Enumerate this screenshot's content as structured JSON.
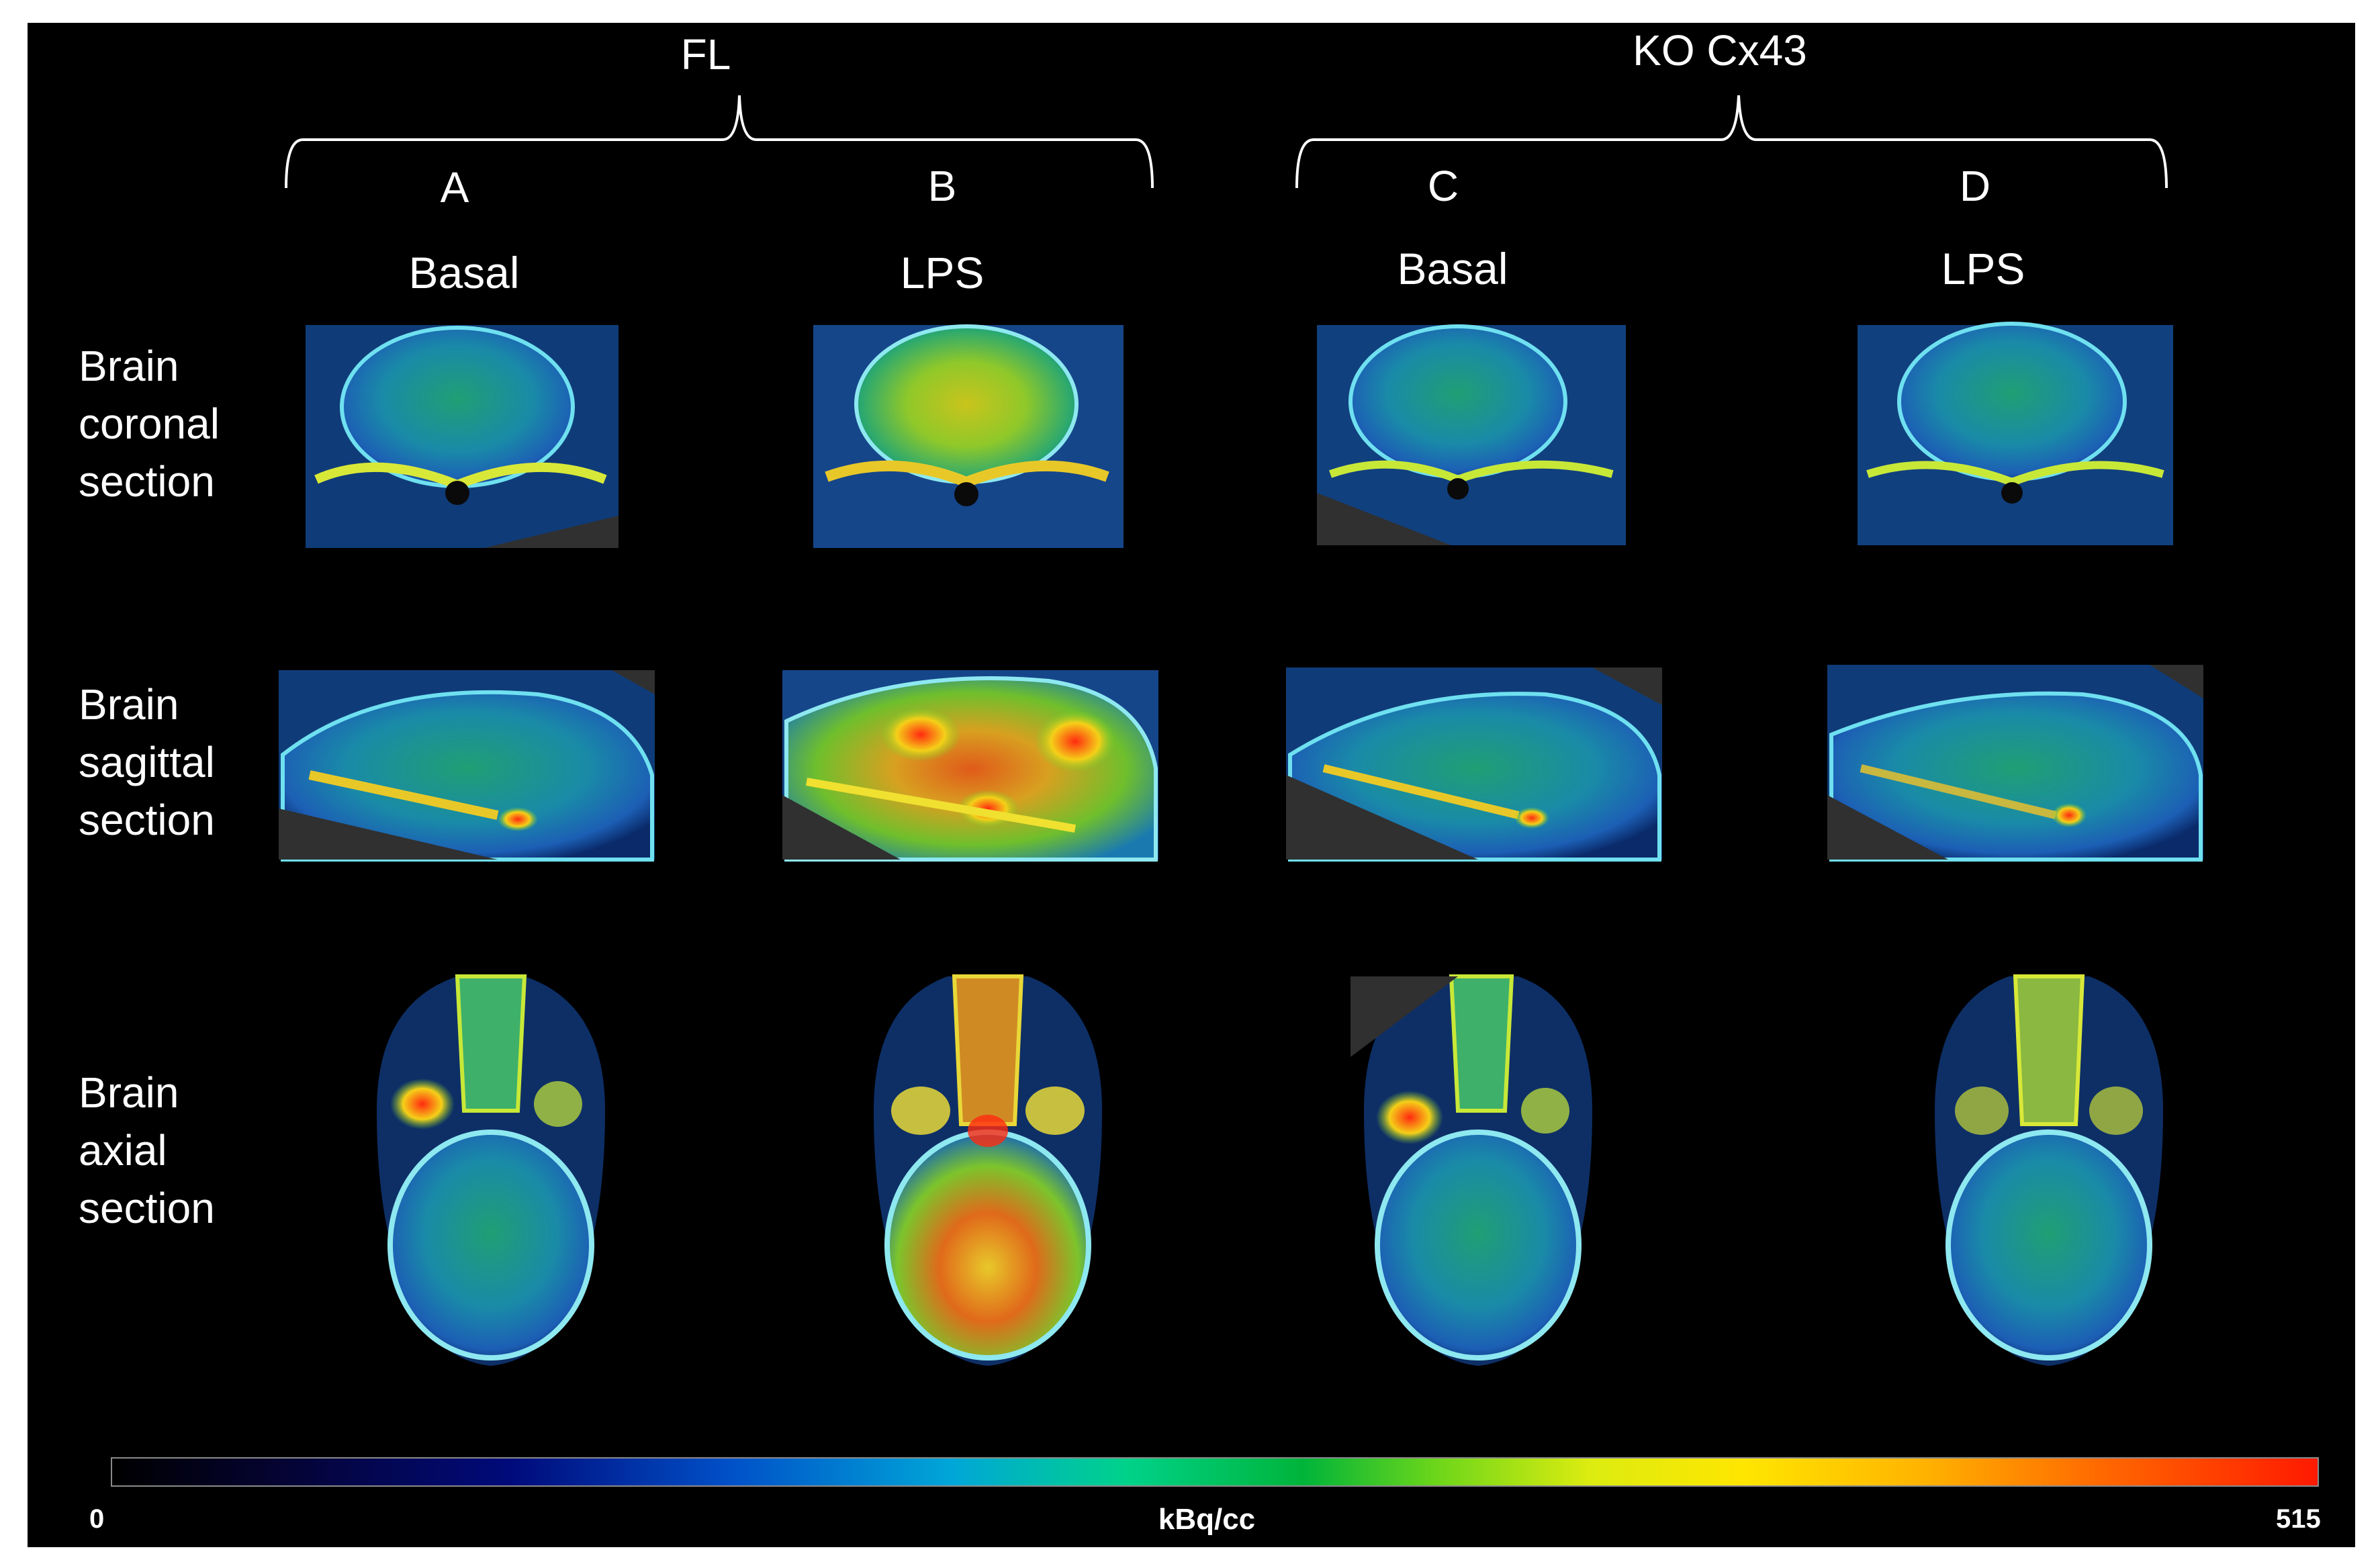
{
  "groups": [
    {
      "label": "FL"
    },
    {
      "label": "KO Cx43"
    }
  ],
  "columns": [
    {
      "letter": "A",
      "condition": "Basal"
    },
    {
      "letter": "B",
      "condition": "LPS"
    },
    {
      "letter": "C",
      "condition": "Basal"
    },
    {
      "letter": "D",
      "condition": "LPS"
    }
  ],
  "rows": [
    {
      "line1": "Brain",
      "line2": "coronal",
      "line3": "section"
    },
    {
      "line1": "Brain",
      "line2": "sagittal",
      "line3": "section"
    },
    {
      "line1": "Brain",
      "line2": "axial",
      "line3": "section"
    }
  ],
  "colorbar": {
    "min_label": "0",
    "max_label": "515",
    "unit": "kBq/cc",
    "colors": [
      "#000000",
      "#000a7a",
      "#00a6d8",
      "#00b43a",
      "#ffe600",
      "#ff6a00",
      "#ff1a00"
    ]
  }
}
